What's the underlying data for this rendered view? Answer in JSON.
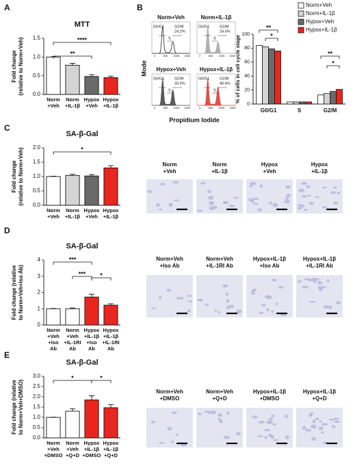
{
  "chart_data": [
    {
      "type": "bar",
      "panel": "A",
      "title": "MTT",
      "y_label": "Fold change\n(relative to Norm+Veh)",
      "categories": [
        "Norm\n+Veh",
        "Norm\n+IL-1β",
        "Hypox\n+Veh",
        "Hypox\n+IL-1β"
      ],
      "values": [
        1.0,
        0.78,
        0.48,
        0.45
      ],
      "errors": [
        0.01,
        0.05,
        0.05,
        0.04
      ],
      "colors": [
        "#ffffff",
        "#d4d4d4",
        "#6a6a6a",
        "#e8261e"
      ],
      "ylim": [
        0,
        1.5
      ],
      "yticks": [
        {
          "value": 0,
          "label": "0.0"
        },
        0.5,
        {
          "value": 1,
          "label": "1.0"
        },
        1.5
      ],
      "annotations": [
        "**",
        "****"
      ]
    },
    {
      "type": "grouped_bar",
      "panel": "B",
      "y_label": "% of cells in cell cycle stage",
      "categories": [
        "G0/G1",
        "S",
        "G2/M"
      ],
      "series": [
        {
          "name": "Norm+Veh",
          "color": "#ffffff",
          "values": [
            84,
            3,
            13
          ]
        },
        {
          "name": "Norm+IL-1β",
          "color": "#d4d4d4",
          "values": [
            82,
            3,
            15
          ]
        },
        {
          "name": "Hypox+Veh",
          "color": "#6a6a6a",
          "values": [
            79,
            3,
            18
          ]
        },
        {
          "name": "Hypox+IL-1β",
          "color": "#e8261e",
          "values": [
            76,
            3,
            21
          ]
        }
      ],
      "ylim": [
        0,
        100
      ],
      "yticks": [
        0,
        20,
        40,
        60,
        80,
        100
      ],
      "annotations": [
        "**",
        "*",
        "**",
        "*"
      ]
    },
    {
      "type": "bar",
      "panel": "C",
      "title": "SA-β-Gal",
      "y_label": "Fold change\n(relative to Norm+Veh)",
      "categories": [
        "Norm\n+Veh",
        "Norm\n+IL-1β",
        "Hypox\n+Veh",
        "Hypox\n+IL-1β"
      ],
      "values": [
        1.0,
        1.04,
        1.02,
        1.3
      ],
      "errors": [
        0.01,
        0.04,
        0.05,
        0.08
      ],
      "colors": [
        "#ffffff",
        "#d4d4d4",
        "#6a6a6a",
        "#e8261e"
      ],
      "ylim": [
        0,
        2
      ],
      "yticks": [
        {
          "value": 0,
          "label": "0.0"
        },
        0.5,
        {
          "value": 1,
          "label": "1.0"
        },
        1.5,
        {
          "value": 2,
          "label": "2.0"
        }
      ],
      "annotations": [
        "*"
      ],
      "image_labels": [
        "Norm\n+Veh",
        "Norm\n+IL-1β",
        "Hypox\n+Veh",
        "Hypox\n+IL-1β"
      ]
    },
    {
      "type": "bar",
      "panel": "D",
      "title": "SA-β-Gal",
      "y_label": "Fold change (relative\nto Norm+Veh+Iso Ab)",
      "categories": [
        "Norm\n+Veh\n+Iso\nAb",
        "Norm\n+Veh\n+IL-1RI\nAb",
        "Hypox\n+IL-1β\n+Iso\nAb",
        "Hypox\n+IL-1β\n+IL-1RI\nAb"
      ],
      "values": [
        1.0,
        1.0,
        1.72,
        1.22
      ],
      "errors": [
        0.02,
        0.05,
        0.17,
        0.09
      ],
      "colors": [
        "#ffffff",
        "#ffffff",
        "#e8261e",
        "#e8261e"
      ],
      "ylim": [
        0,
        4
      ],
      "yticks": [
        0,
        1,
        2,
        3,
        4
      ],
      "annotations": [
        "***",
        "***",
        "*"
      ],
      "image_labels": [
        "Norm+Veh\n+Iso Ab",
        "Norm+Veh\n+IL-1RI Ab",
        "Hypox+IL-1β\n+Iso Ab",
        "Hypox+IL-1β\n+IL-1RI Ab"
      ]
    },
    {
      "type": "bar",
      "panel": "E",
      "title": "SA-β-Gal",
      "y_label": "Fold change (relative\nto Norm+Veh+DMSO)",
      "categories": [
        "Norm\n+Veh\n+DMSO",
        "Norm\n+Veh\n+Q+D",
        "Hypox\n+IL-1β\n+DMSO",
        "Hypox\n+IL-1β\n+Q+D"
      ],
      "values": [
        1.0,
        1.3,
        1.85,
        1.47
      ],
      "errors": [
        0.01,
        0.12,
        0.2,
        0.15
      ],
      "colors": [
        "#ffffff",
        "#ffffff",
        "#e8261e",
        "#e8261e"
      ],
      "ylim": [
        0,
        3
      ],
      "yticks": [
        {
          "value": 0,
          "label": "0.0"
        },
        0.5,
        {
          "value": 1,
          "label": "1.0"
        },
        1.5,
        {
          "value": 2,
          "label": "2.0"
        },
        2.5,
        {
          "value": 3,
          "label": "3.0"
        }
      ],
      "annotations": [
        "*",
        "*"
      ],
      "image_labels": [
        "Norm+Veh\n+DMSO",
        "Norm+Veh\n+Q+D",
        "Hypox+IL-1β\n+DMSO",
        "Hypox+IL-1β\n+Q+D"
      ]
    }
  ],
  "flow_cytometry": {
    "y_label": "Mode",
    "x_label": "Propidium Iodide",
    "xticks": [
      "0",
      "50K",
      "100K",
      "150K"
    ],
    "plots": [
      {
        "title": "Norm+Veh",
        "color": "#222222",
        "gates": [
          "G0/G1",
          "G2/M",
          "S"
        ],
        "pct": "24.2%"
      },
      {
        "title": "Norm+IL-1β",
        "color": "#b0b0b0",
        "gates": [
          "G0/G1",
          "G2/M",
          "S"
        ],
        "pct": "24.6%"
      },
      {
        "title": "Hypox+Veh",
        "color": "#5a5a5a",
        "gates": [
          "G0/G1",
          "G2/M",
          "S"
        ],
        "pct": "33.6%"
      },
      {
        "title": "Hypox+IL-1β",
        "color": "#e0504a",
        "gates": [
          "G0/G1",
          "G2/M",
          "S"
        ],
        "pct": "40.4%"
      }
    ]
  }
}
